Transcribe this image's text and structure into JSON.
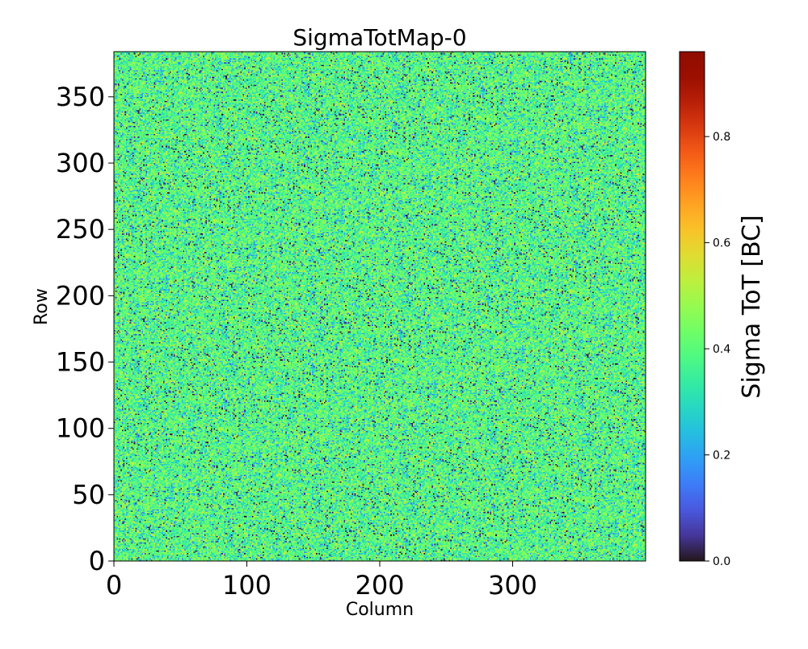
{
  "chart_data": {
    "type": "heatmap",
    "title": "SigmaTotMap-0",
    "xlabel": "Column",
    "ylabel": "Row",
    "xlim": [
      0,
      400
    ],
    "ylim": [
      0,
      384
    ],
    "x_ticks": [
      {
        "value": 0,
        "label": "0"
      },
      {
        "value": 100,
        "label": "100"
      },
      {
        "value": 200,
        "label": "200"
      },
      {
        "value": 300,
        "label": "300"
      }
    ],
    "y_ticks": [
      {
        "value": 0,
        "label": "0"
      },
      {
        "value": 50,
        "label": "50"
      },
      {
        "value": 100,
        "label": "100"
      },
      {
        "value": 150,
        "label": "150"
      },
      {
        "value": 200,
        "label": "200"
      },
      {
        "value": 250,
        "label": "250"
      },
      {
        "value": 300,
        "label": "300"
      },
      {
        "value": 350,
        "label": "350"
      }
    ],
    "grid": false,
    "colorbar": {
      "label": "Sigma ToT [BC]",
      "range": [
        0,
        0.96
      ],
      "colormap": "turbo",
      "ticks": [
        {
          "value": 0.0,
          "label": "0.0"
        },
        {
          "value": 0.2,
          "label": "0.2"
        },
        {
          "value": 0.4,
          "label": "0.4"
        },
        {
          "value": 0.6,
          "label": "0.6"
        },
        {
          "value": 0.8,
          "label": "0.8"
        }
      ]
    },
    "value_distribution": {
      "typical_range": [
        0.3,
        0.5
      ],
      "dominant_value": 0.4,
      "low_outliers": 0.0,
      "note_visible": "dense pixel noise over full 400x384 matrix"
    }
  }
}
